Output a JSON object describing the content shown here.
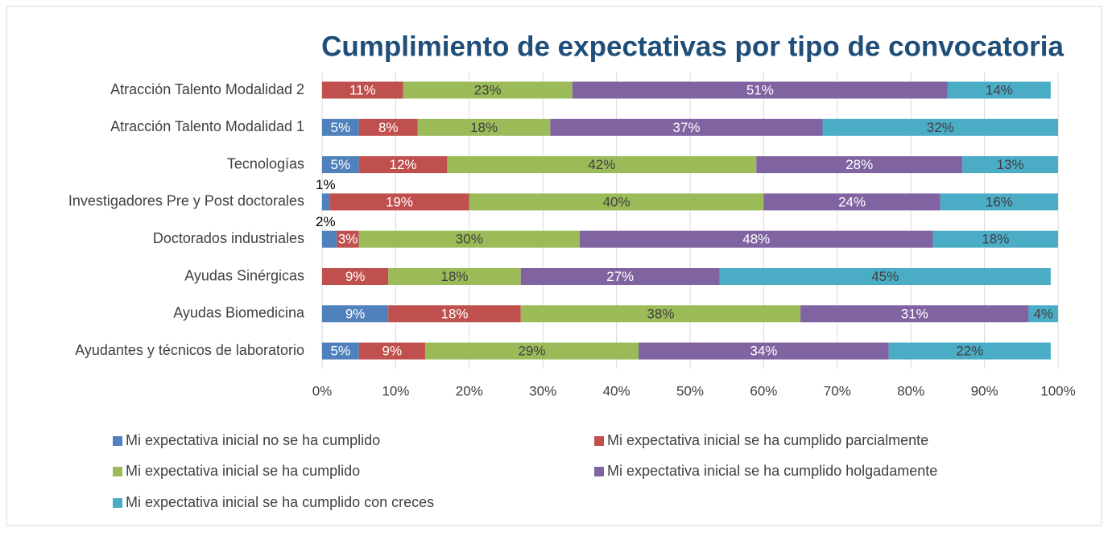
{
  "chart_data": {
    "type": "bar",
    "orientation": "horizontal",
    "stacked": true,
    "title": "Cumplimiento de expectativas por tipo de convocatoria",
    "categories": [
      "Atracción Talento Modalidad 2",
      "Atracción Talento Modalidad 1",
      "Tecnologías",
      "Investigadores Pre y Post doctorales",
      "Doctorados industriales",
      "Ayudas Sinérgicas",
      "Ayudas Biomedicina",
      "Ayudantes y técnicos de laboratorio"
    ],
    "series": [
      {
        "name": "Mi expectativa inicial no se ha cumplido",
        "color": "#4f81bd",
        "values": [
          null,
          5,
          5,
          1,
          2,
          null,
          9,
          5
        ],
        "value_labels": [
          null,
          "5%",
          "5%",
          "1%",
          "2%",
          null,
          "9%",
          "5%"
        ]
      },
      {
        "name": "Mi expectativa inicial se ha cumplido parcialmente",
        "color": "#c0504d",
        "values": [
          11,
          8,
          12,
          19,
          3,
          9,
          18,
          9
        ],
        "value_labels": [
          "11%",
          "8%",
          "12%",
          "19%",
          "3%",
          "9%",
          "18%",
          "9%"
        ]
      },
      {
        "name": "Mi expectativa inicial se ha cumplido",
        "color": "#9bbb59",
        "values": [
          23,
          18,
          42,
          40,
          30,
          18,
          38,
          29
        ],
        "value_labels": [
          "23%",
          "18%",
          "42%",
          "40%",
          "30%",
          "18%",
          "38%",
          "29%"
        ]
      },
      {
        "name": "Mi expectativa inicial se ha cumplido holgadamente",
        "color": "#8064a2",
        "values": [
          51,
          37,
          28,
          24,
          48,
          27,
          31,
          34
        ],
        "value_labels": [
          "51%",
          "37%",
          "28%",
          "24%",
          "48%",
          "27%",
          "31%",
          "34%"
        ]
      },
      {
        "name": "Mi expectativa inicial se ha cumplido con creces",
        "color": "#4bacc6",
        "values": [
          14,
          32,
          13,
          16,
          18,
          45,
          4,
          22
        ],
        "value_labels": [
          "14%",
          "32%",
          "13%",
          "16%",
          "18%",
          "45%",
          "4%",
          "22%"
        ]
      }
    ],
    "xlim": [
      0,
      100
    ],
    "xticks": [
      {
        "value": 0,
        "label": "0%"
      },
      {
        "value": 10,
        "label": "10%"
      },
      {
        "value": 20,
        "label": "20%"
      },
      {
        "value": 30,
        "label": "30%"
      },
      {
        "value": 40,
        "label": "40%"
      },
      {
        "value": 50,
        "label": "50%"
      },
      {
        "value": 60,
        "label": "60%"
      },
      {
        "value": 70,
        "label": "70%"
      },
      {
        "value": 80,
        "label": "80%"
      },
      {
        "value": 90,
        "label": "90%"
      },
      {
        "value": 100,
        "label": "100%"
      }
    ],
    "grid": true,
    "legend": "bottom"
  }
}
